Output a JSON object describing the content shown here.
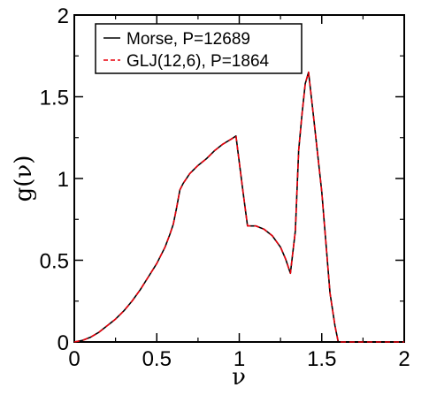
{
  "chart_data": {
    "type": "line",
    "xlabel": "ν",
    "ylabel": "g(ν)",
    "xlim": [
      0,
      2
    ],
    "ylim": [
      0,
      2
    ],
    "x_ticks": [
      "0",
      "0.5",
      "1",
      "1.5",
      "2"
    ],
    "y_ticks": [
      "0",
      "0.5",
      "1",
      "1.5",
      "2"
    ],
    "grid": false,
    "legend_position": "top-left",
    "series": [
      {
        "name": "Morse, P=12689",
        "color": "#000000",
        "style": "solid",
        "x": [
          0,
          0.05,
          0.1,
          0.15,
          0.2,
          0.25,
          0.3,
          0.35,
          0.4,
          0.45,
          0.5,
          0.55,
          0.58,
          0.6,
          0.62,
          0.64,
          0.66,
          0.7,
          0.75,
          0.8,
          0.85,
          0.9,
          0.95,
          0.98,
          1.02,
          1.05,
          1.08,
          1.1,
          1.15,
          1.2,
          1.25,
          1.28,
          1.31,
          1.34,
          1.36,
          1.38,
          1.4,
          1.42,
          1.45,
          1.5,
          1.55,
          1.58,
          1.6,
          1.7,
          1.8,
          1.9,
          2.0
        ],
        "y": [
          0,
          0.01,
          0.03,
          0.06,
          0.1,
          0.14,
          0.19,
          0.25,
          0.32,
          0.4,
          0.48,
          0.58,
          0.66,
          0.72,
          0.82,
          0.93,
          0.97,
          1.03,
          1.08,
          1.12,
          1.17,
          1.21,
          1.24,
          1.26,
          0.94,
          0.71,
          0.71,
          0.71,
          0.69,
          0.65,
          0.58,
          0.51,
          0.42,
          0.68,
          1.17,
          1.39,
          1.58,
          1.65,
          1.38,
          0.92,
          0.3,
          0.1,
          0.0,
          0,
          0,
          0,
          0
        ]
      },
      {
        "name": "GLJ(12,6), P=1864",
        "color": "#e8000b",
        "style": "dashed",
        "x": [
          0,
          0.05,
          0.1,
          0.15,
          0.2,
          0.25,
          0.3,
          0.35,
          0.4,
          0.45,
          0.5,
          0.55,
          0.58,
          0.6,
          0.62,
          0.64,
          0.66,
          0.7,
          0.75,
          0.8,
          0.85,
          0.9,
          0.95,
          0.98,
          1.02,
          1.05,
          1.08,
          1.1,
          1.15,
          1.2,
          1.25,
          1.28,
          1.31,
          1.34,
          1.36,
          1.38,
          1.4,
          1.42,
          1.45,
          1.5,
          1.55,
          1.58,
          1.6,
          1.7,
          1.8,
          1.9,
          2.0
        ],
        "y": [
          0,
          0.01,
          0.03,
          0.06,
          0.1,
          0.14,
          0.19,
          0.25,
          0.32,
          0.4,
          0.48,
          0.58,
          0.66,
          0.72,
          0.82,
          0.93,
          0.97,
          1.03,
          1.08,
          1.12,
          1.17,
          1.21,
          1.24,
          1.26,
          0.94,
          0.71,
          0.71,
          0.71,
          0.69,
          0.65,
          0.58,
          0.51,
          0.42,
          0.68,
          1.17,
          1.39,
          1.58,
          1.65,
          1.38,
          0.92,
          0.3,
          0.1,
          0.0,
          0,
          0,
          0,
          0
        ]
      }
    ]
  }
}
